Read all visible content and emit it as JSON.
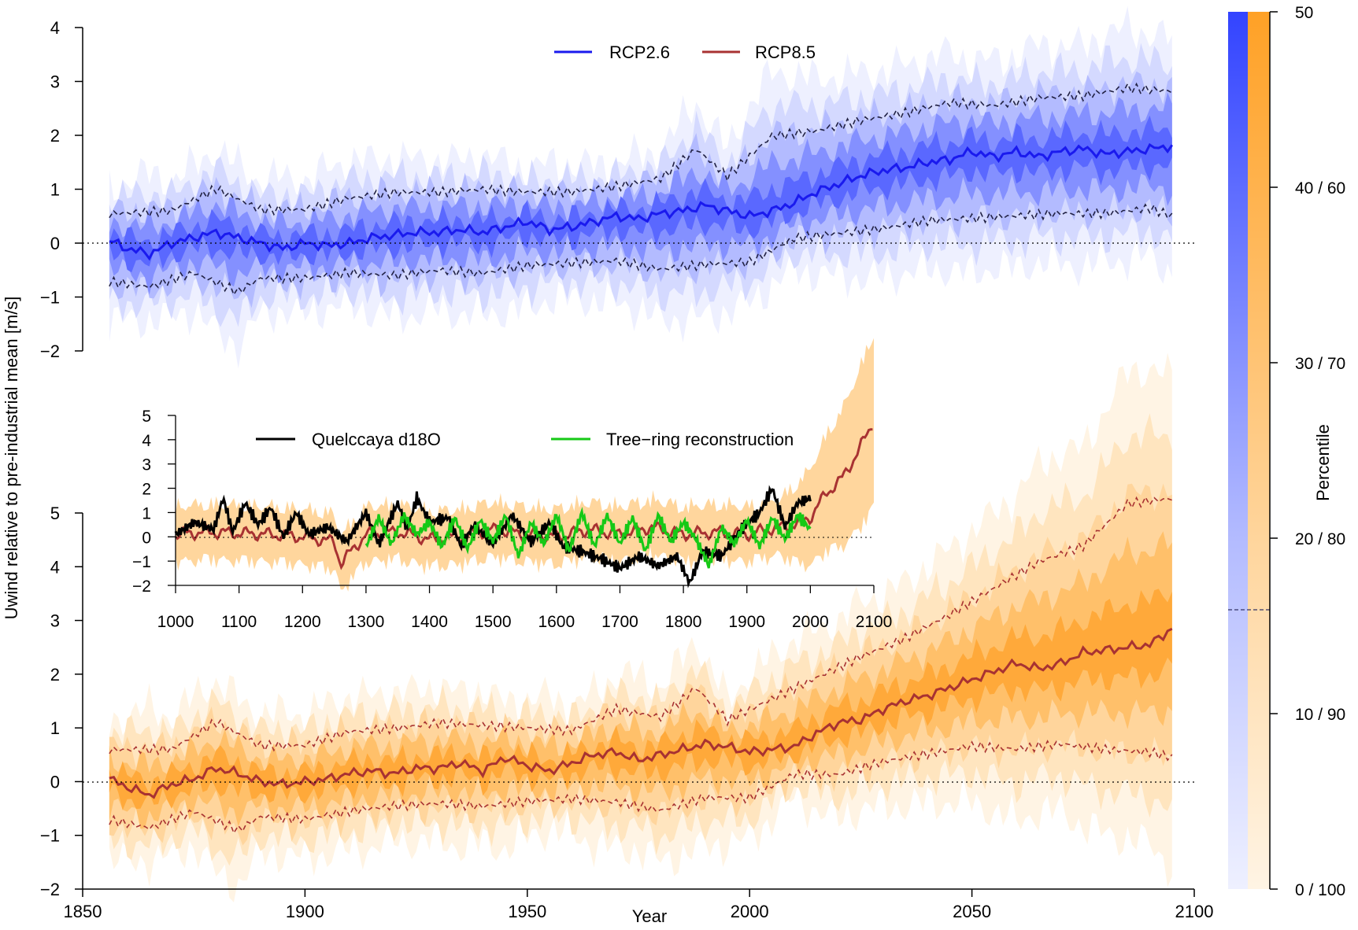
{
  "chart_data": [
    {
      "name": "rcp26",
      "type": "area",
      "title": "",
      "xlabel": "Year",
      "ylabel": "Uwind relative to pre-industrial mean [m/s]",
      "xlim": [
        1850,
        2100
      ],
      "ylim": [
        -2,
        4
      ],
      "yticks": [
        "−2",
        "−1",
        "0",
        "1",
        "2",
        "3",
        "4"
      ],
      "legend": [
        "RCP2.6",
        "RCP8.5"
      ],
      "series": [
        {
          "name": "median",
          "x": [
            1856,
            1860,
            1865,
            1870,
            1875,
            1880,
            1885,
            1890,
            1895,
            1900,
            1905,
            1910,
            1915,
            1920,
            1925,
            1930,
            1935,
            1940,
            1945,
            1950,
            1955,
            1960,
            1965,
            1970,
            1975,
            1980,
            1985,
            1990,
            1995,
            2000,
            2005,
            2010,
            2015,
            2020,
            2025,
            2030,
            2035,
            2040,
            2045,
            2050,
            2055,
            2060,
            2065,
            2070,
            2075,
            2080,
            2085,
            2090,
            2095
          ],
          "values": [
            0.05,
            -0.1,
            -0.2,
            0.0,
            0.1,
            0.2,
            0.1,
            0.0,
            -0.1,
            0.0,
            -0.05,
            0.0,
            0.1,
            0.15,
            0.2,
            0.2,
            0.25,
            0.2,
            0.3,
            0.4,
            0.25,
            0.3,
            0.4,
            0.5,
            0.45,
            0.55,
            0.6,
            0.7,
            0.6,
            0.5,
            0.6,
            0.75,
            0.95,
            1.1,
            1.25,
            1.35,
            1.4,
            1.5,
            1.55,
            1.7,
            1.6,
            1.7,
            1.6,
            1.7,
            1.75,
            1.65,
            1.7,
            1.75,
            1.8
          ]
        },
        {
          "name": "upper_dashed",
          "x": [
            1856,
            1870,
            1880,
            1890,
            1900,
            1910,
            1920,
            1930,
            1940,
            1950,
            1960,
            1970,
            1980,
            1988,
            1995,
            2005,
            2015,
            2025,
            2035,
            2045,
            2055,
            2065,
            2075,
            2085,
            2095
          ],
          "values": [
            0.55,
            0.6,
            1.0,
            0.6,
            0.6,
            0.8,
            0.9,
            0.9,
            0.95,
            0.9,
            0.9,
            1.0,
            1.15,
            1.7,
            1.2,
            1.95,
            2.05,
            2.25,
            2.4,
            2.6,
            2.55,
            2.7,
            2.75,
            2.9,
            2.85
          ]
        },
        {
          "name": "lower_dashed",
          "x": [
            1856,
            1865,
            1875,
            1885,
            1890,
            1900,
            1910,
            1920,
            1930,
            1940,
            1950,
            1960,
            1970,
            1980,
            1990,
            2000,
            2010,
            2020,
            2030,
            2040,
            2050,
            2060,
            2070,
            2080,
            2090,
            2095
          ],
          "values": [
            -0.75,
            -0.85,
            -0.6,
            -0.95,
            -0.7,
            -0.7,
            -0.6,
            -0.65,
            -0.55,
            -0.6,
            -0.45,
            -0.4,
            -0.35,
            -0.5,
            -0.4,
            -0.35,
            0.1,
            0.2,
            0.3,
            0.45,
            0.5,
            0.55,
            0.6,
            0.6,
            0.7,
            0.55
          ]
        }
      ]
    },
    {
      "name": "rcp85",
      "type": "area",
      "xlim": [
        1850,
        2100
      ],
      "ylim": [
        -2,
        5
      ],
      "xticks": [
        "1850",
        "1900",
        "1950",
        "2000",
        "2050",
        "2100"
      ],
      "yticks": [
        "−2",
        "−1",
        "0",
        "1",
        "2",
        "3",
        "4",
        "5"
      ],
      "series": [
        {
          "name": "median",
          "x": [
            1856,
            1860,
            1865,
            1870,
            1875,
            1880,
            1885,
            1890,
            1895,
            1900,
            1905,
            1910,
            1915,
            1920,
            1925,
            1930,
            1935,
            1940,
            1945,
            1950,
            1955,
            1960,
            1965,
            1970,
            1975,
            1980,
            1985,
            1990,
            1995,
            2000,
            2005,
            2010,
            2015,
            2020,
            2025,
            2030,
            2035,
            2040,
            2045,
            2050,
            2055,
            2060,
            2065,
            2070,
            2075,
            2080,
            2085,
            2090,
            2095
          ],
          "values": [
            0.05,
            -0.1,
            -0.25,
            -0.05,
            0.05,
            0.25,
            0.15,
            0.0,
            -0.05,
            0.0,
            0.05,
            0.15,
            0.2,
            0.15,
            0.25,
            0.25,
            0.35,
            0.2,
            0.45,
            0.3,
            0.2,
            0.35,
            0.5,
            0.55,
            0.4,
            0.5,
            0.6,
            0.7,
            0.65,
            0.55,
            0.6,
            0.65,
            0.9,
            1.1,
            1.15,
            1.35,
            1.5,
            1.6,
            1.75,
            1.9,
            2.05,
            2.2,
            2.1,
            2.2,
            2.4,
            2.45,
            2.5,
            2.55,
            2.85
          ]
        },
        {
          "name": "upper_dashed",
          "x": [
            1856,
            1870,
            1880,
            1890,
            1900,
            1910,
            1920,
            1930,
            1940,
            1950,
            1960,
            1970,
            1980,
            1988,
            1995,
            2005,
            2015,
            2025,
            2035,
            2045,
            2055,
            2065,
            2075,
            2085,
            2095
          ],
          "values": [
            0.6,
            0.6,
            1.1,
            0.65,
            0.65,
            0.9,
            0.95,
            1.05,
            1.0,
            0.95,
            0.9,
            1.3,
            1.15,
            1.7,
            1.1,
            1.5,
            1.9,
            2.3,
            2.65,
            3.1,
            3.6,
            4.1,
            4.4,
            5.2,
            5.3
          ]
        },
        {
          "name": "lower_dashed",
          "x": [
            1856,
            1865,
            1875,
            1885,
            1890,
            1900,
            1910,
            1920,
            1930,
            1940,
            1950,
            1960,
            1970,
            1980,
            1990,
            2000,
            2010,
            2020,
            2030,
            2040,
            2050,
            2060,
            2070,
            2080,
            2090,
            2095
          ],
          "values": [
            -0.75,
            -0.9,
            -0.6,
            -0.95,
            -0.7,
            -0.75,
            -0.6,
            -0.5,
            -0.45,
            -0.5,
            -0.4,
            -0.35,
            -0.4,
            -0.55,
            -0.3,
            -0.3,
            0.15,
            0.15,
            0.4,
            0.55,
            0.7,
            0.65,
            0.75,
            0.65,
            0.6,
            0.5
          ]
        }
      ]
    },
    {
      "name": "inset",
      "type": "line",
      "xlim": [
        1000,
        2100
      ],
      "ylim": [
        -2,
        5
      ],
      "xticks": [
        "1000",
        "1100",
        "1200",
        "1300",
        "1400",
        "1500",
        "1600",
        "1700",
        "1800",
        "1900",
        "2000",
        "2100"
      ],
      "yticks": [
        "−2",
        "−1",
        "0",
        "1",
        "2",
        "3",
        "4",
        "5"
      ],
      "legend": [
        "Quelccaya d18O",
        "Tree−ring reconstruction"
      ],
      "series": [
        {
          "name": "Quelccaya d18O",
          "x": [
            1000,
            1030,
            1060,
            1075,
            1090,
            1110,
            1130,
            1150,
            1170,
            1190,
            1210,
            1240,
            1270,
            1300,
            1320,
            1350,
            1365,
            1380,
            1400,
            1430,
            1450,
            1470,
            1500,
            1530,
            1560,
            1590,
            1610,
            1640,
            1670,
            1700,
            1730,
            1760,
            1790,
            1810,
            1830,
            1860,
            1890,
            1920,
            1940,
            1960,
            1980,
            2000
          ],
          "values": [
            0.1,
            0.6,
            0.3,
            1.6,
            0.2,
            1.4,
            0.5,
            1.2,
            0.0,
            1.0,
            0.1,
            0.4,
            -0.2,
            1.0,
            -0.3,
            1.4,
            0.3,
            1.6,
            0.6,
            0.8,
            -0.4,
            0.5,
            -0.3,
            0.9,
            -0.2,
            0.6,
            -0.4,
            -0.6,
            -0.9,
            -1.3,
            -0.8,
            -1.2,
            -0.8,
            -1.9,
            -0.6,
            -0.8,
            0.3,
            1.0,
            2.0,
            0.4,
            1.4,
            1.6
          ]
        },
        {
          "name": "Tree-ring reconstruction",
          "x": [
            1300,
            1320,
            1340,
            1360,
            1380,
            1400,
            1420,
            1440,
            1460,
            1480,
            1500,
            1520,
            1540,
            1560,
            1580,
            1600,
            1620,
            1640,
            1660,
            1680,
            1700,
            1720,
            1740,
            1760,
            1780,
            1800,
            1820,
            1840,
            1860,
            1880,
            1900,
            1920,
            1940,
            1960,
            1980,
            2000
          ],
          "values": [
            -0.4,
            0.8,
            -0.3,
            0.9,
            0.1,
            0.6,
            -0.4,
            0.8,
            -0.5,
            0.7,
            -0.2,
            0.9,
            -0.8,
            0.6,
            -0.3,
            0.9,
            -0.6,
            1.0,
            -0.4,
            0.9,
            -0.3,
            0.8,
            -0.6,
            0.9,
            -0.2,
            0.6,
            -0.1,
            -1.2,
            0.4,
            -0.3,
            0.7,
            -0.4,
            0.8,
            -0.1,
            0.9,
            0.3
          ]
        },
        {
          "name": "RCP8.5 median",
          "x": [
            1000,
            1050,
            1100,
            1150,
            1200,
            1250,
            1260,
            1300,
            1350,
            1400,
            1450,
            1500,
            1550,
            1600,
            1650,
            1700,
            1750,
            1800,
            1850,
            1900,
            1950,
            1975,
            2000,
            2025,
            2050,
            2075,
            2100
          ],
          "values": [
            0.1,
            0.2,
            0.15,
            0.1,
            0.0,
            -0.2,
            -1.1,
            0.1,
            0.2,
            -0.1,
            0.0,
            0.3,
            0.1,
            0.0,
            0.3,
            0.1,
            0.4,
            0.1,
            0.2,
            0.1,
            0.4,
            0.5,
            0.8,
            1.8,
            2.4,
            3.5,
            4.8
          ]
        }
      ]
    },
    {
      "name": "colorbar",
      "type": "heatmap",
      "title": "Percentile",
      "ticks": [
        "0 / 100",
        "10 / 90",
        "20 / 80",
        "30 / 70",
        "40 / 60",
        "50"
      ],
      "colors": {
        "rcp26": "#3344ff",
        "rcp85": "#ffa126"
      }
    }
  ]
}
